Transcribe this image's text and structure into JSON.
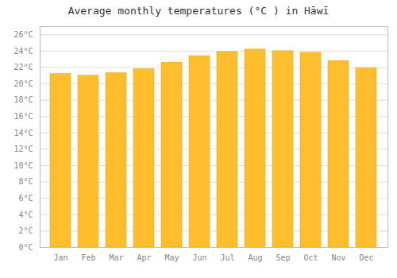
{
  "chart_data": {
    "type": "bar",
    "title": "Average monthly temperatures (°C ) in Hāwī",
    "categories": [
      "Jan",
      "Feb",
      "Mar",
      "Apr",
      "May",
      "Jun",
      "Jul",
      "Aug",
      "Sep",
      "Oct",
      "Nov",
      "Dec"
    ],
    "values": [
      21.2,
      21.0,
      21.3,
      21.8,
      22.6,
      23.4,
      23.9,
      24.2,
      24.0,
      23.8,
      22.8,
      21.9
    ],
    "color": "#FFBE2D",
    "ylim": [
      0,
      27
    ],
    "yticks": [
      {
        "value": 0,
        "label": "0°C"
      },
      {
        "value": 2,
        "label": "2°C"
      },
      {
        "value": 4,
        "label": "4°C"
      },
      {
        "value": 6,
        "label": "6°C"
      },
      {
        "value": 8,
        "label": "8°C"
      },
      {
        "value": 10,
        "label": "10°C"
      },
      {
        "value": 12,
        "label": "12°C"
      },
      {
        "value": 14,
        "label": "14°C"
      },
      {
        "value": 16,
        "label": "16°C"
      },
      {
        "value": 18,
        "label": "18°C"
      },
      {
        "value": 20,
        "label": "20°C"
      },
      {
        "value": 22,
        "label": "22°C"
      },
      {
        "value": 24,
        "label": "24°C"
      },
      {
        "value": 26,
        "label": "26°C"
      }
    ],
    "grid": true
  }
}
